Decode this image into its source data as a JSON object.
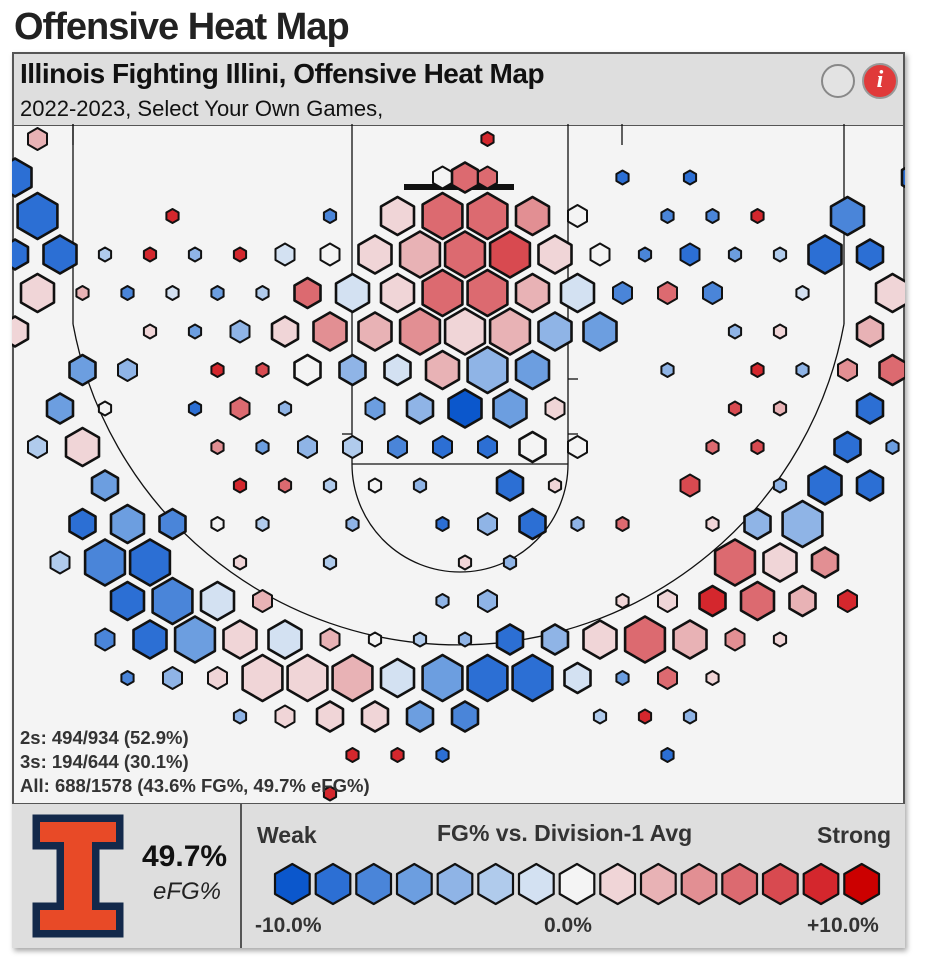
{
  "page": {
    "title": "Offensive Heat Map"
  },
  "card": {
    "title": "Illinois Fighting Illini, Offensive Heat Map",
    "subtitle": "2022-2023, Select Your Own Games,",
    "info_symbol": "i"
  },
  "stats": {
    "twos": "2s: 494/934 (52.9%)",
    "threes": "3s: 194/644 (30.1%)",
    "all": "All: 688/1578 (43.6% FG%, 49.7% eFG%)"
  },
  "summary": {
    "efg_value": "49.7%",
    "efg_label": "eFG%"
  },
  "legend": {
    "weak": "Weak",
    "title": "FG% vs. Division-1 Avg",
    "strong": "Strong",
    "min_label": "-10.0%",
    "mid_label": "0.0%",
    "max_label": "+10.0%",
    "colors": [
      "#0b57cc",
      "#2c6fd4",
      "#4a85d9",
      "#6c9ee0",
      "#8fb4e6",
      "#b0cbec",
      "#d3e1f2",
      "#f4f4f4",
      "#f0d5d7",
      "#e8b2b5",
      "#e28f93",
      "#dc6a70",
      "#d84a50",
      "#d4272d",
      "#cc0000"
    ]
  },
  "colors": {
    "team_orange": "#E84A27",
    "team_navy": "#13294B"
  },
  "chart_data": {
    "type": "heatmap",
    "title": "Illinois Fighting Illini, Offensive Heat Map",
    "subtitle": "2022-2023, Select Your Own Games,",
    "color_scale": {
      "min": -10,
      "max": 10,
      "unit": "FG% vs. Division-1 Avg"
    },
    "columns": [
      -20,
      -19,
      -18,
      -17,
      -16,
      -15,
      -14,
      -13,
      -12,
      -11,
      -10,
      -9,
      -8,
      -7,
      -6,
      -5,
      -4,
      -3,
      -2,
      -1,
      0,
      1,
      2,
      3,
      4,
      5,
      6,
      7,
      8,
      9,
      10,
      11,
      12,
      13,
      14,
      15,
      16,
      17,
      18,
      19,
      20
    ],
    "hexes": [
      {
        "c": -19,
        "r": 0,
        "s": 2,
        "v": 3
      },
      {
        "c": 1,
        "r": 0,
        "s": 1,
        "v": 8
      },
      {
        "c": -1,
        "r": 1,
        "s": 2,
        "v": 0
      },
      {
        "c": 0,
        "r": 1,
        "s": 3,
        "v": 5
      },
      {
        "c": 1,
        "r": 1,
        "s": 2,
        "v": 6
      },
      {
        "c": 7,
        "r": 1,
        "s": 1,
        "v": -8
      },
      {
        "c": 10,
        "r": 1,
        "s": 1,
        "v": -8
      },
      {
        "c": -20,
        "r": 1,
        "s": 4,
        "v": -9
      },
      {
        "c": 20,
        "r": 1,
        "s": 3,
        "v": -8
      },
      {
        "c": -3,
        "r": 2,
        "s": 4,
        "v": 2
      },
      {
        "c": -1,
        "r": 2,
        "s": 5,
        "v": 6
      },
      {
        "c": 1,
        "r": 2,
        "s": 5,
        "v": 5
      },
      {
        "c": 3,
        "r": 2,
        "s": 4,
        "v": 4
      },
      {
        "c": 5,
        "r": 2,
        "s": 2,
        "v": 0
      },
      {
        "c": -19,
        "r": 2,
        "s": 5,
        "v": -8
      },
      {
        "c": -13,
        "r": 2,
        "s": 1,
        "v": 8
      },
      {
        "c": -6,
        "r": 2,
        "s": 1,
        "v": -7
      },
      {
        "c": 9,
        "r": 2,
        "s": 1,
        "v": -7
      },
      {
        "c": 11,
        "r": 2,
        "s": 1,
        "v": -7
      },
      {
        "c": 13,
        "r": 2,
        "s": 1,
        "v": 8
      },
      {
        "c": 17,
        "r": 2,
        "s": 4,
        "v": -7
      },
      {
        "c": -4,
        "r": 3,
        "s": 4,
        "v": 2
      },
      {
        "c": -2,
        "r": 3,
        "s": 5,
        "v": 3
      },
      {
        "c": 0,
        "r": 3,
        "s": 5,
        "v": 5
      },
      {
        "c": 2,
        "r": 3,
        "s": 5,
        "v": 7
      },
      {
        "c": 4,
        "r": 3,
        "s": 4,
        "v": 2
      },
      {
        "c": -20,
        "r": 3,
        "s": 3,
        "v": -8
      },
      {
        "c": -18,
        "r": 3,
        "s": 4,
        "v": -8
      },
      {
        "c": -16,
        "r": 3,
        "s": 1,
        "v": -3
      },
      {
        "c": -14,
        "r": 3,
        "s": 1,
        "v": 8
      },
      {
        "c": -12,
        "r": 3,
        "s": 1,
        "v": -5
      },
      {
        "c": -10,
        "r": 3,
        "s": 1,
        "v": 8
      },
      {
        "c": -8,
        "r": 3,
        "s": 2,
        "v": -1
      },
      {
        "c": -6,
        "r": 3,
        "s": 2,
        "v": 0
      },
      {
        "c": 6,
        "r": 3,
        "s": 2,
        "v": 0
      },
      {
        "c": 8,
        "r": 3,
        "s": 1,
        "v": -7
      },
      {
        "c": 10,
        "r": 3,
        "s": 2,
        "v": -8
      },
      {
        "c": 12,
        "r": 3,
        "s": 1,
        "v": -6
      },
      {
        "c": 14,
        "r": 3,
        "s": 1,
        "v": -3
      },
      {
        "c": 16,
        "r": 3,
        "s": 4,
        "v": -8
      },
      {
        "c": 18,
        "r": 3,
        "s": 3,
        "v": -8
      },
      {
        "c": -3,
        "r": 4,
        "s": 4,
        "v": 2
      },
      {
        "c": -1,
        "r": 4,
        "s": 5,
        "v": 6
      },
      {
        "c": 1,
        "r": 4,
        "s": 5,
        "v": 6
      },
      {
        "c": 3,
        "r": 4,
        "s": 4,
        "v": 3
      },
      {
        "c": 5,
        "r": 4,
        "s": 4,
        "v": -1
      },
      {
        "c": -5,
        "r": 4,
        "s": 4,
        "v": -1
      },
      {
        "c": -7,
        "r": 4,
        "s": 3,
        "v": 6
      },
      {
        "c": -19,
        "r": 4,
        "s": 4,
        "v": 1
      },
      {
        "c": -21,
        "r": 4,
        "s": 1,
        "v": 1
      },
      {
        "c": -17,
        "r": 4,
        "s": 1,
        "v": 3
      },
      {
        "c": -15,
        "r": 4,
        "s": 1,
        "v": -7
      },
      {
        "c": -13,
        "r": 4,
        "s": 1,
        "v": -2
      },
      {
        "c": -11,
        "r": 4,
        "s": 1,
        "v": -6
      },
      {
        "c": -9,
        "r": 4,
        "s": 1,
        "v": -3
      },
      {
        "c": 7,
        "r": 4,
        "s": 2,
        "v": -7
      },
      {
        "c": 9,
        "r": 4,
        "s": 2,
        "v": 5
      },
      {
        "c": 11,
        "r": 4,
        "s": 2,
        "v": -7
      },
      {
        "c": 15,
        "r": 4,
        "s": 1,
        "v": -2
      },
      {
        "c": 19,
        "r": 4,
        "s": 4,
        "v": 1
      },
      {
        "c": -4,
        "r": 5,
        "s": 4,
        "v": 3
      },
      {
        "c": -2,
        "r": 5,
        "s": 5,
        "v": 4
      },
      {
        "c": 0,
        "r": 5,
        "s": 5,
        "v": 2
      },
      {
        "c": 2,
        "r": 5,
        "s": 5,
        "v": 3
      },
      {
        "c": 4,
        "r": 5,
        "s": 4,
        "v": -4
      },
      {
        "c": 6,
        "r": 5,
        "s": 4,
        "v": -6
      },
      {
        "c": -6,
        "r": 5,
        "s": 4,
        "v": 4
      },
      {
        "c": -8,
        "r": 5,
        "s": 3,
        "v": 2
      },
      {
        "c": -20,
        "r": 5,
        "s": 3,
        "v": 1
      },
      {
        "c": -14,
        "r": 5,
        "s": 1,
        "v": 2
      },
      {
        "c": -12,
        "r": 5,
        "s": 1,
        "v": -6
      },
      {
        "c": -10,
        "r": 5,
        "s": 2,
        "v": -4
      },
      {
        "c": 12,
        "r": 5,
        "s": 1,
        "v": -5
      },
      {
        "c": 14,
        "r": 5,
        "s": 1,
        "v": 1
      },
      {
        "c": 18,
        "r": 5,
        "s": 3,
        "v": 3
      },
      {
        "c": 20,
        "r": 5,
        "s": 1,
        "v": 6
      },
      {
        "c": -1,
        "r": 6,
        "s": 4,
        "v": 3
      },
      {
        "c": 1,
        "r": 6,
        "s": 5,
        "v": -4
      },
      {
        "c": 3,
        "r": 6,
        "s": 4,
        "v": -6
      },
      {
        "c": -3,
        "r": 6,
        "s": 3,
        "v": -2
      },
      {
        "c": -5,
        "r": 6,
        "s": 3,
        "v": -5
      },
      {
        "c": -7,
        "r": 6,
        "s": 3,
        "v": 0
      },
      {
        "c": -17,
        "r": 6,
        "s": 3,
        "v": -6
      },
      {
        "c": -15,
        "r": 6,
        "s": 2,
        "v": -4
      },
      {
        "c": -11,
        "r": 6,
        "s": 1,
        "v": 8
      },
      {
        "c": -9,
        "r": 6,
        "s": 1,
        "v": 7
      },
      {
        "c": 9,
        "r": 6,
        "s": 1,
        "v": -5
      },
      {
        "c": 13,
        "r": 6,
        "s": 1,
        "v": 8
      },
      {
        "c": 15,
        "r": 6,
        "s": 1,
        "v": -4
      },
      {
        "c": 17,
        "r": 6,
        "s": 2,
        "v": 4
      },
      {
        "c": 19,
        "r": 6,
        "s": 3,
        "v": 6
      },
      {
        "c": 0,
        "r": 7,
        "s": 4,
        "v": -10
      },
      {
        "c": 2,
        "r": 7,
        "s": 4,
        "v": -6
      },
      {
        "c": -2,
        "r": 7,
        "s": 3,
        "v": -5
      },
      {
        "c": 4,
        "r": 7,
        "s": 2,
        "v": 1
      },
      {
        "c": -4,
        "r": 7,
        "s": 2,
        "v": -6
      },
      {
        "c": -18,
        "r": 7,
        "s": 3,
        "v": -6
      },
      {
        "c": -16,
        "r": 7,
        "s": 1,
        "v": 0
      },
      {
        "c": -12,
        "r": 7,
        "s": 1,
        "v": -9
      },
      {
        "c": -10,
        "r": 7,
        "s": 2,
        "v": 6
      },
      {
        "c": -8,
        "r": 7,
        "s": 1,
        "v": -4
      },
      {
        "c": 12,
        "r": 7,
        "s": 1,
        "v": 7
      },
      {
        "c": 14,
        "r": 7,
        "s": 1,
        "v": 3
      },
      {
        "c": 18,
        "r": 7,
        "s": 3,
        "v": -8
      },
      {
        "c": -19,
        "r": 8,
        "s": 2,
        "v": -3
      },
      {
        "c": -17,
        "r": 8,
        "s": 4,
        "v": 1
      },
      {
        "c": -11,
        "r": 8,
        "s": 1,
        "v": 4
      },
      {
        "c": -9,
        "r": 8,
        "s": 1,
        "v": -6
      },
      {
        "c": -7,
        "r": 8,
        "s": 2,
        "v": -4
      },
      {
        "c": -5,
        "r": 8,
        "s": 2,
        "v": -3
      },
      {
        "c": -3,
        "r": 8,
        "s": 2,
        "v": -7
      },
      {
        "c": -1,
        "r": 8,
        "s": 2,
        "v": -8
      },
      {
        "c": 1,
        "r": 8,
        "s": 2,
        "v": -9
      },
      {
        "c": 3,
        "r": 8,
        "s": 3,
        "v": 0
      },
      {
        "c": 5,
        "r": 8,
        "s": 2,
        "v": 0
      },
      {
        "c": 11,
        "r": 8,
        "s": 1,
        "v": 5
      },
      {
        "c": 13,
        "r": 8,
        "s": 1,
        "v": 7
      },
      {
        "c": 17,
        "r": 8,
        "s": 3,
        "v": -9
      },
      {
        "c": 19,
        "r": 8,
        "s": 1,
        "v": -6
      },
      {
        "c": -16,
        "r": 9,
        "s": 3,
        "v": -6
      },
      {
        "c": -10,
        "r": 9,
        "s": 1,
        "v": 8
      },
      {
        "c": -8,
        "r": 9,
        "s": 1,
        "v": 5
      },
      {
        "c": -6,
        "r": 9,
        "s": 1,
        "v": -3
      },
      {
        "c": -4,
        "r": 9,
        "s": 1,
        "v": 0
      },
      {
        "c": -2,
        "r": 9,
        "s": 1,
        "v": -4
      },
      {
        "c": 2,
        "r": 9,
        "s": 3,
        "v": -8
      },
      {
        "c": 4,
        "r": 9,
        "s": 1,
        "v": 1
      },
      {
        "c": 10,
        "r": 9,
        "s": 2,
        "v": 7
      },
      {
        "c": 14,
        "r": 9,
        "s": 1,
        "v": -5
      },
      {
        "c": 16,
        "r": 9,
        "s": 4,
        "v": -9
      },
      {
        "c": 18,
        "r": 9,
        "s": 3,
        "v": -9
      },
      {
        "c": -17,
        "r": 10,
        "s": 3,
        "v": -8
      },
      {
        "c": -15,
        "r": 10,
        "s": 4,
        "v": -6
      },
      {
        "c": -13,
        "r": 10,
        "s": 3,
        "v": -7
      },
      {
        "c": -11,
        "r": 10,
        "s": 1,
        "v": 0
      },
      {
        "c": -9,
        "r": 10,
        "s": 1,
        "v": -3
      },
      {
        "c": -5,
        "r": 10,
        "s": 1,
        "v": -4
      },
      {
        "c": -1,
        "r": 10,
        "s": 1,
        "v": -9
      },
      {
        "c": 1,
        "r": 10,
        "s": 2,
        "v": -5
      },
      {
        "c": 3,
        "r": 10,
        "s": 3,
        "v": -9
      },
      {
        "c": 5,
        "r": 10,
        "s": 1,
        "v": -4
      },
      {
        "c": 7,
        "r": 10,
        "s": 1,
        "v": 6
      },
      {
        "c": 11,
        "r": 10,
        "s": 1,
        "v": 2
      },
      {
        "c": 13,
        "r": 10,
        "s": 3,
        "v": -4
      },
      {
        "c": 15,
        "r": 10,
        "s": 5,
        "v": -4
      },
      {
        "c": -18,
        "r": 11,
        "s": 2,
        "v": -3
      },
      {
        "c": -16,
        "r": 11,
        "s": 5,
        "v": -7
      },
      {
        "c": -14,
        "r": 11,
        "s": 5,
        "v": -8
      },
      {
        "c": -10,
        "r": 11,
        "s": 1,
        "v": 1
      },
      {
        "c": -6,
        "r": 11,
        "s": 1,
        "v": -3
      },
      {
        "c": 0,
        "r": 11,
        "s": 1,
        "v": 1
      },
      {
        "c": 2,
        "r": 11,
        "s": 1,
        "v": -5
      },
      {
        "c": 12,
        "r": 11,
        "s": 5,
        "v": 5
      },
      {
        "c": 14,
        "r": 11,
        "s": 4,
        "v": 2
      },
      {
        "c": 16,
        "r": 11,
        "s": 3,
        "v": 4
      },
      {
        "c": -15,
        "r": 12,
        "s": 4,
        "v": -9
      },
      {
        "c": -13,
        "r": 12,
        "s": 5,
        "v": -7
      },
      {
        "c": -11,
        "r": 12,
        "s": 4,
        "v": -2
      },
      {
        "c": -9,
        "r": 12,
        "s": 2,
        "v": 3
      },
      {
        "c": -1,
        "r": 12,
        "s": 1,
        "v": -5
      },
      {
        "c": 1,
        "r": 12,
        "s": 2,
        "v": -4
      },
      {
        "c": 7,
        "r": 12,
        "s": 1,
        "v": 2
      },
      {
        "c": 9,
        "r": 12,
        "s": 2,
        "v": 2
      },
      {
        "c": 11,
        "r": 12,
        "s": 3,
        "v": 8
      },
      {
        "c": 13,
        "r": 12,
        "s": 4,
        "v": 5
      },
      {
        "c": 15,
        "r": 12,
        "s": 3,
        "v": 3
      },
      {
        "c": 17,
        "r": 12,
        "s": 2,
        "v": 9
      },
      {
        "c": -16,
        "r": 13,
        "s": 2,
        "v": -7
      },
      {
        "c": -14,
        "r": 13,
        "s": 4,
        "v": -9
      },
      {
        "c": -12,
        "r": 13,
        "s": 5,
        "v": -6
      },
      {
        "c": -10,
        "r": 13,
        "s": 4,
        "v": 2
      },
      {
        "c": -8,
        "r": 13,
        "s": 4,
        "v": -1
      },
      {
        "c": -6,
        "r": 13,
        "s": 2,
        "v": 3
      },
      {
        "c": -4,
        "r": 13,
        "s": 1,
        "v": 0
      },
      {
        "c": -2,
        "r": 13,
        "s": 1,
        "v": -3
      },
      {
        "c": 0,
        "r": 13,
        "s": 1,
        "v": -4
      },
      {
        "c": 2,
        "r": 13,
        "s": 3,
        "v": -9
      },
      {
        "c": 4,
        "r": 13,
        "s": 3,
        "v": -5
      },
      {
        "c": 6,
        "r": 13,
        "s": 4,
        "v": 1
      },
      {
        "c": 8,
        "r": 13,
        "s": 5,
        "v": 5
      },
      {
        "c": 10,
        "r": 13,
        "s": 4,
        "v": 3
      },
      {
        "c": 12,
        "r": 13,
        "s": 2,
        "v": 4
      },
      {
        "c": 14,
        "r": 13,
        "s": 1,
        "v": 1
      },
      {
        "c": -15,
        "r": 14,
        "s": 1,
        "v": -7
      },
      {
        "c": -13,
        "r": 14,
        "s": 2,
        "v": -4
      },
      {
        "c": -11,
        "r": 14,
        "s": 2,
        "v": 2
      },
      {
        "c": -9,
        "r": 14,
        "s": 5,
        "v": 1
      },
      {
        "c": -7,
        "r": 14,
        "s": 5,
        "v": 2
      },
      {
        "c": -5,
        "r": 14,
        "s": 5,
        "v": 3
      },
      {
        "c": -3,
        "r": 14,
        "s": 4,
        "v": -2
      },
      {
        "c": -1,
        "r": 14,
        "s": 5,
        "v": -6
      },
      {
        "c": 1,
        "r": 14,
        "s": 5,
        "v": -9
      },
      {
        "c": 3,
        "r": 14,
        "s": 5,
        "v": -9
      },
      {
        "c": 5,
        "r": 14,
        "s": 3,
        "v": -2
      },
      {
        "c": 7,
        "r": 14,
        "s": 1,
        "v": -6
      },
      {
        "c": 9,
        "r": 14,
        "s": 2,
        "v": 6
      },
      {
        "c": 11,
        "r": 14,
        "s": 1,
        "v": 2
      },
      {
        "c": -10,
        "r": 15,
        "s": 1,
        "v": -4
      },
      {
        "c": -8,
        "r": 15,
        "s": 2,
        "v": 1
      },
      {
        "c": -6,
        "r": 15,
        "s": 3,
        "v": 1
      },
      {
        "c": -4,
        "r": 15,
        "s": 3,
        "v": 1
      },
      {
        "c": -2,
        "r": 15,
        "s": 3,
        "v": -6
      },
      {
        "c": 0,
        "r": 15,
        "s": 3,
        "v": -7
      },
      {
        "c": 6,
        "r": 15,
        "s": 1,
        "v": -3
      },
      {
        "c": 8,
        "r": 15,
        "s": 1,
        "v": 8
      },
      {
        "c": 10,
        "r": 15,
        "s": 1,
        "v": -4
      },
      {
        "c": -5,
        "r": 16,
        "s": 1,
        "v": 8
      },
      {
        "c": -3,
        "r": 16,
        "s": 1,
        "v": 8
      },
      {
        "c": -1,
        "r": 16,
        "s": 1,
        "v": -8
      },
      {
        "c": 9,
        "r": 16,
        "s": 1,
        "v": -8
      },
      {
        "c": -6,
        "r": 17,
        "s": 1,
        "v": 8
      },
      {
        "c": -3,
        "r": 18,
        "s": 1,
        "v": 8
      }
    ]
  }
}
